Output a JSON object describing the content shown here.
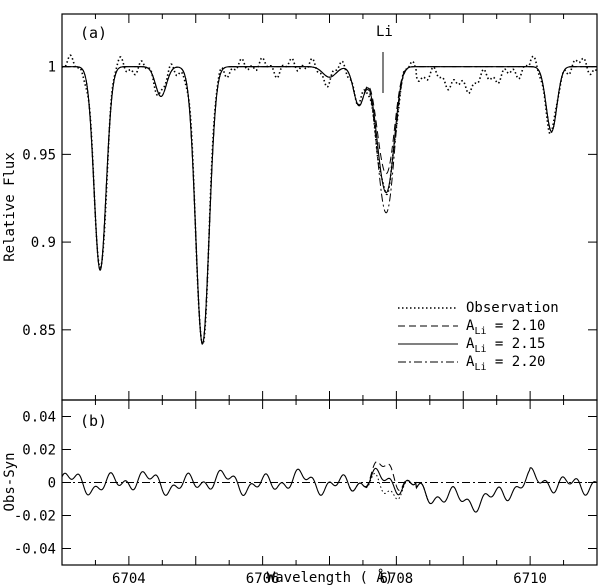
{
  "chart_data": [
    {
      "panel": "(a)",
      "type": "line",
      "xlabel": "Wavelength ( Å)",
      "ylabel": "Relative Flux",
      "xlim": [
        6703,
        6711
      ],
      "ylim": [
        0.81,
        1.03
      ],
      "xticks": [
        "6704",
        "6706",
        "6708",
        "6710"
      ],
      "yticks": [
        "0.85",
        "0.9",
        "0.95",
        "1"
      ],
      "annotation": {
        "text": "Li",
        "x": 6707.78
      },
      "lines": [
        {
          "center": 6703.57,
          "width": 0.09,
          "depth": 0.116
        },
        {
          "center": 6704.48,
          "width": 0.08,
          "depth": 0.017
        },
        {
          "center": 6705.1,
          "width": 0.1,
          "depth": 0.158
        },
        {
          "center": 6707.0,
          "width": 0.1,
          "depth": 0.006
        },
        {
          "center": 6707.44,
          "width": 0.08,
          "depth": 0.022
        },
        {
          "center": 6707.8,
          "width": 0.11,
          "depth": 0.055
        },
        {
          "center": 6707.92,
          "width": 0.09,
          "depth": 0.03
        },
        {
          "center": 6710.32,
          "width": 0.08,
          "depth": 0.037
        }
      ],
      "li_scale": [
        0.85,
        1.0,
        1.16
      ],
      "legend": {
        "position": "bottom-right",
        "entries": [
          {
            "label": "Observation",
            "style": "dotted"
          },
          {
            "label": "A",
            "sub": "Li",
            "value": "= 2.10",
            "style": "dashed"
          },
          {
            "label": "A",
            "sub": "Li",
            "value": "= 2.15",
            "style": "solid"
          },
          {
            "label": "A",
            "sub": "Li",
            "value": "= 2.20",
            "style": "dashdot"
          }
        ]
      }
    },
    {
      "panel": "(b)",
      "type": "line",
      "xlabel": "Wavelength ( Å)",
      "ylabel": "Obs-Syn",
      "xlim": [
        6703,
        6711
      ],
      "ylim": [
        -0.05,
        0.05
      ],
      "xticks": [
        "6704",
        "6706",
        "6708",
        "6710"
      ],
      "yticks": [
        "-0.04",
        "-0.02",
        "0",
        "0.02",
        "0.04"
      ],
      "zero_line": "dashdot"
    }
  ]
}
